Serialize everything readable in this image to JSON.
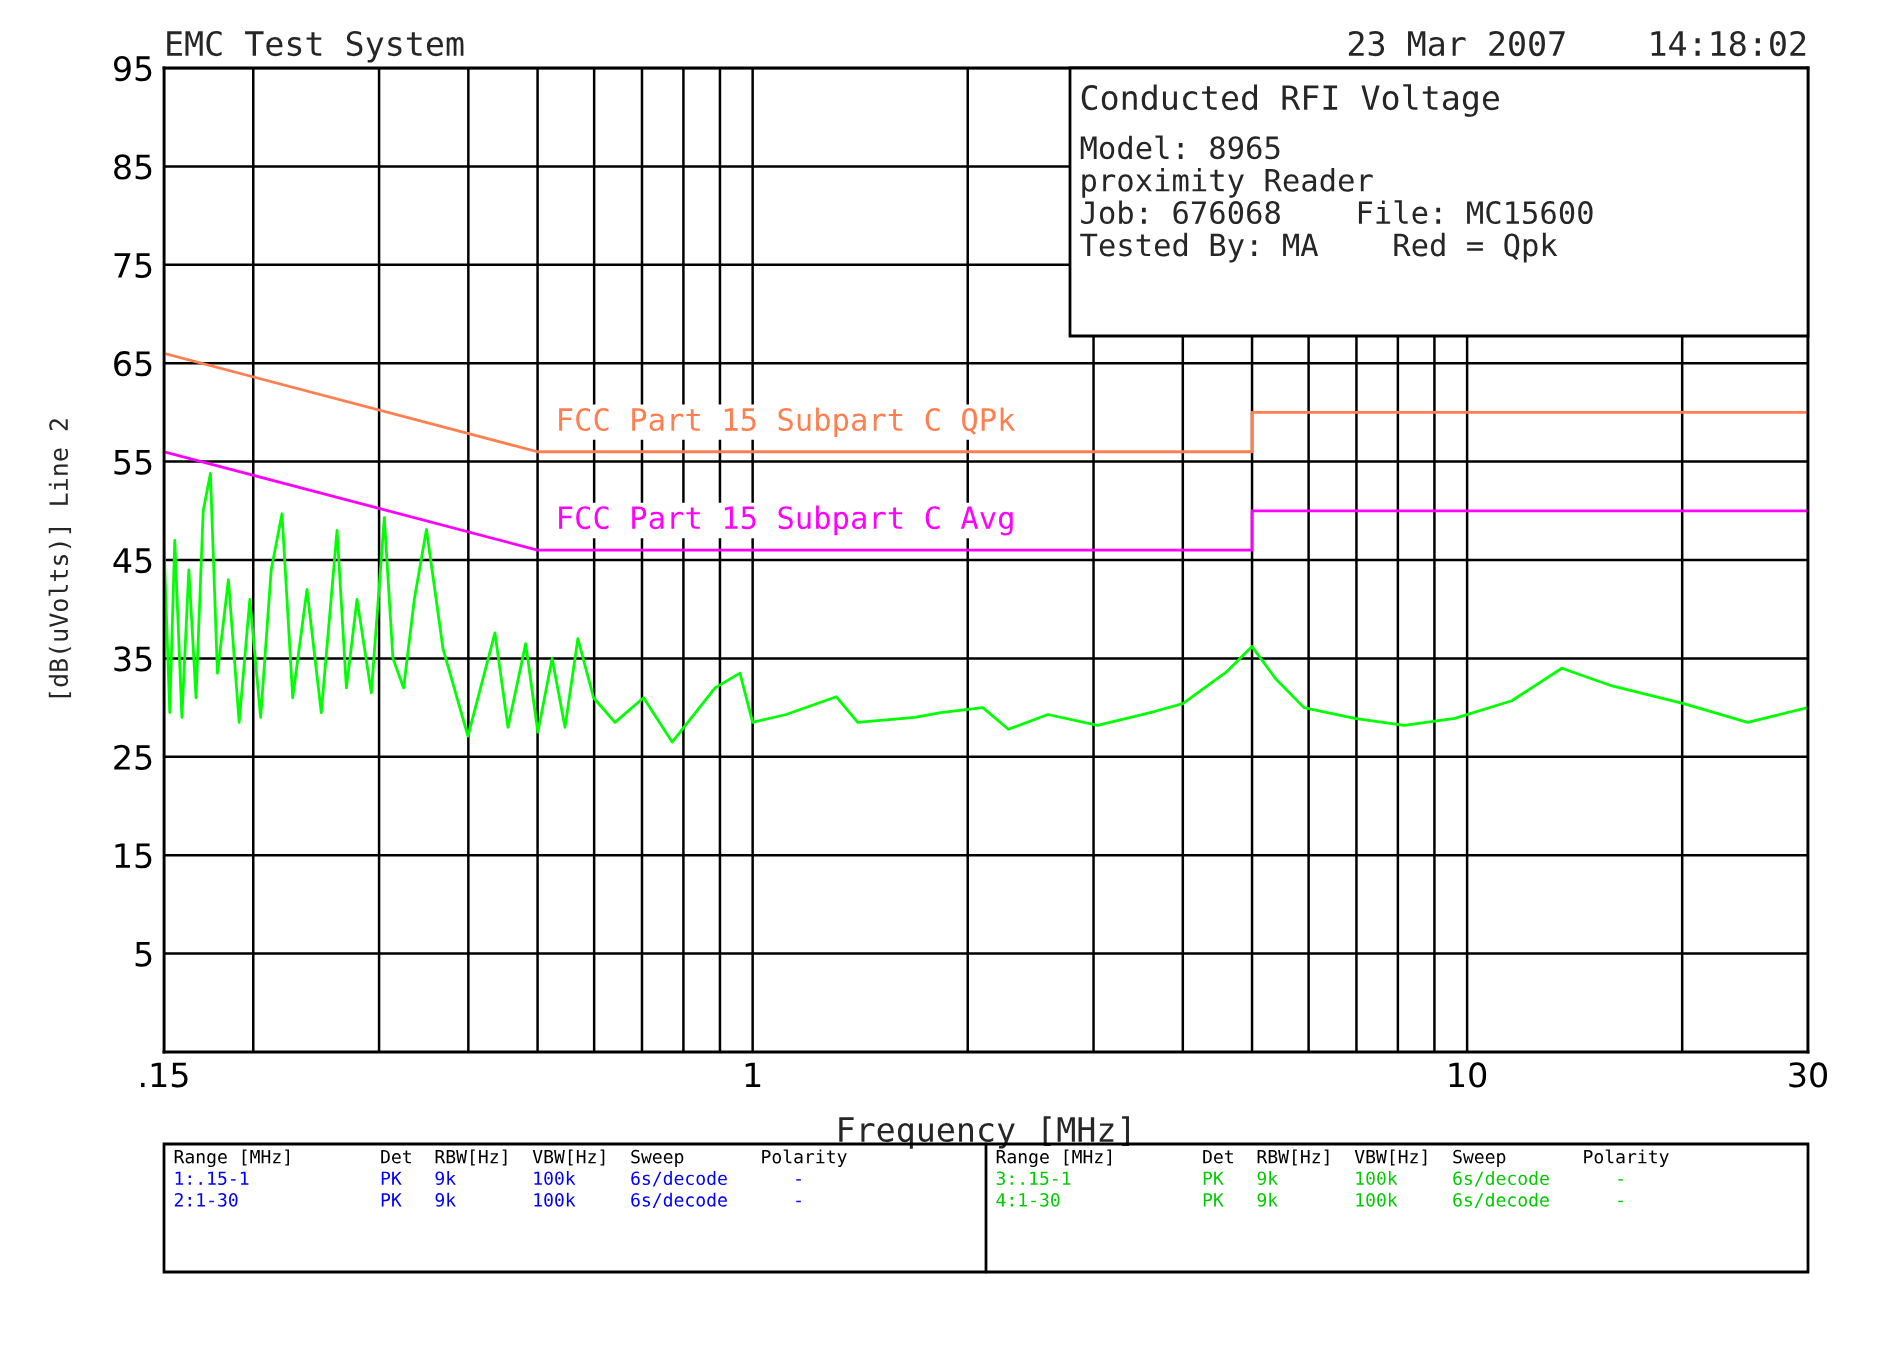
{
  "chart_data": {
    "type": "line",
    "title": "EMC Test System",
    "xlabel": "Frequency [MHz]",
    "ylabel": "[dB(uVolts)] Line 2",
    "log": "x",
    "grid": true,
    "xlim": [
      0.15,
      30
    ],
    "ylim": [
      -5,
      95
    ],
    "xticks": [
      {
        "value": 0.15,
        "label": ".15"
      },
      {
        "value": 0.2,
        "label": null
      },
      {
        "value": 0.3,
        "label": null
      },
      {
        "value": 0.4,
        "label": null
      },
      {
        "value": 0.5,
        "label": null
      },
      {
        "value": 0.6,
        "label": null
      },
      {
        "value": 0.7,
        "label": null
      },
      {
        "value": 0.8,
        "label": null
      },
      {
        "value": 0.9,
        "label": null
      },
      1,
      {
        "value": 2,
        "label": null
      },
      {
        "value": 3,
        "label": null
      },
      {
        "value": 4,
        "label": null
      },
      {
        "value": 5,
        "label": null
      },
      {
        "value": 6,
        "label": null
      },
      {
        "value": 7,
        "label": null
      },
      {
        "value": 8,
        "label": null
      },
      {
        "value": 9,
        "label": null
      },
      10,
      {
        "value": 20,
        "label": null
      },
      30
    ],
    "yticks": [
      5,
      15,
      25,
      35,
      45,
      55,
      65,
      75,
      85,
      95
    ],
    "series": [
      {
        "color": "#00ff00",
        "x": [
          0.15,
          0.1528,
          0.1553,
          0.1589,
          0.1625,
          0.1663,
          0.1702,
          0.1742,
          0.1782,
          0.1846,
          0.1911,
          0.1978,
          0.2048,
          0.2119,
          0.2194,
          0.2271,
          0.2378,
          0.249,
          0.262,
          0.27,
          0.2794,
          0.2926,
          0.3051,
          0.3137,
          0.3247,
          0.3361,
          0.3495,
          0.3686,
          0.3995,
          0.4358,
          0.4545,
          0.4812,
          0.5004,
          0.524,
          0.5462,
          0.5693,
          0.5989,
          0.6417,
          0.7036,
          0.7715,
          0.8858,
          0.9599,
          1.0,
          1.114,
          1.31,
          1.403,
          1.686,
          1.833,
          2.1,
          2.28,
          2.59,
          3.04,
          3.65,
          4.0,
          4.6,
          5.0,
          5.4,
          5.91,
          6.96,
          8.17,
          9.61,
          11.55,
          13.57,
          15.96,
          20.1,
          24.7,
          30
        ],
        "values": [
          46.5,
          29.5,
          47,
          29,
          44,
          31,
          50,
          53.8,
          33.5,
          43,
          28.5,
          41,
          29,
          44,
          49.7,
          31,
          42,
          29.5,
          48,
          32,
          41,
          31.5,
          49.3,
          35,
          32,
          41,
          48.1,
          36,
          27.1,
          37.6,
          28,
          36.5,
          27.5,
          35,
          28,
          37,
          31,
          28.5,
          31,
          26.5,
          32,
          33.5,
          28.5,
          29.3,
          31.1,
          28.5,
          29,
          29.5,
          30,
          27.8,
          29.3,
          28.2,
          29.6,
          30.4,
          33.6,
          36.2,
          32.9,
          30,
          28.9,
          28.2,
          28.9,
          30.7,
          34,
          32.2,
          30.4,
          28.5,
          30
        ]
      },
      {
        "name": "FCC Part 15 Subpart C QPk",
        "color": "#ff7f50",
        "x": [
          0.15,
          0.5,
          5,
          5,
          30
        ],
        "values": [
          66,
          56,
          56,
          60,
          60
        ]
      },
      {
        "name": "FCC Part 15 Subpart C Avg",
        "color": "#ff00ff",
        "x": [
          0.15,
          0.5,
          5,
          5,
          30
        ],
        "values": [
          56,
          46,
          46,
          50,
          50
        ]
      }
    ],
    "annotations": [
      "23 Mar 2007    14:18:02",
      "Conducted RFI Voltage",
      "Model: 8965",
      "proximity Reader",
      "Job: 676068    File: MC15600",
      "Tested By: MA    Red = Qpk",
      "Range [MHz]        Det  RBW[Hz]  VBW[Hz]  Sweep       Polarity",
      "1:.15-1            PK   9k       100k     6s/decode      -",
      "2:1-30             PK   9k       100k     6s/decode      -",
      "Range [MHz]        Det  RBW[Hz]  VBW[Hz]  Sweep       Polarity",
      "3:.15-1            PK   9k       100k     6s/decode      -",
      "4:1-30             PK   9k       100k     6s/decode      -"
    ]
  }
}
